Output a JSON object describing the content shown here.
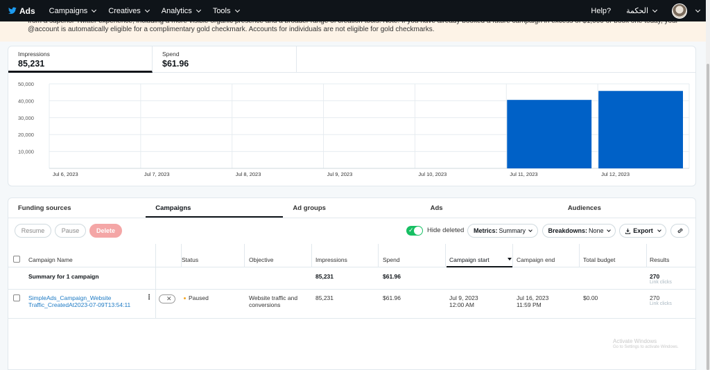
{
  "nav": {
    "brand": "Ads",
    "menu": [
      "Campaigns",
      "Creatives",
      "Analytics",
      "Tools"
    ],
    "help": "Help?",
    "account": "الحكمة"
  },
  "banner": {
    "text": "from a superior Twitter experience, including a more visible organic presence and a broader range of creation tools. Note: If you have already booked a future campaign in excess of $1,000 or book one today, your @account is automatically eligible for a complimentary gold checkmark. Accounts for individuals are not eligible for gold checkmarks."
  },
  "metrics": [
    {
      "label": "Impressions",
      "value": "85,231"
    },
    {
      "label": "Spend",
      "value": "$61.96"
    }
  ],
  "chart_data": {
    "type": "bar",
    "categories": [
      "Jul 6, 2023",
      "Jul 7, 2023",
      "Jul 8, 2023",
      "Jul 9, 2023",
      "Jul 10, 2023",
      "Jul 11, 2023",
      "Jul 12, 2023"
    ],
    "values": [
      0,
      0,
      0,
      0,
      0,
      40500,
      45800
    ],
    "ylim": [
      0,
      50000
    ],
    "yticks": [
      "50,000",
      "40,000",
      "30,000",
      "20,000",
      "10,000"
    ],
    "grid": true,
    "color": "#0061c7"
  },
  "tabs": [
    "Funding sources",
    "Campaigns",
    "Ad groups",
    "Ads",
    "Audiences"
  ],
  "toolbar": {
    "resume": "Resume",
    "pause": "Pause",
    "delete": "Delete",
    "hide_deleted": "Hide deleted",
    "metrics_label": "Metrics:",
    "metrics_value": "Summary",
    "breakdowns_label": "Breakdowns:",
    "breakdowns_value": "None",
    "export": "Export"
  },
  "table": {
    "headers": [
      "Campaign Name",
      "Status",
      "Objective",
      "Impressions",
      "Spend",
      "Campaign start",
      "Campaign end",
      "Total budget",
      "Results"
    ],
    "summary": {
      "name": "Summary for 1 campaign",
      "impressions": "85,231",
      "spend": "$61.96",
      "results": "270",
      "results_sub": "Link clicks"
    },
    "rows": [
      {
        "name": "SimpleAds_Campaign_Website Traffic_CreatedAt2023-07-09T13:54:11",
        "status": "Paused",
        "objective": "Website traffic and conversions",
        "impressions": "85,231",
        "spend": "$61.96",
        "start_date": "Jul 9, 2023",
        "start_time": "12:00 AM",
        "end_date": "Jul 16, 2023",
        "end_time": "11:59 PM",
        "budget": "$0.00",
        "results": "270",
        "results_sub": "Link clicks"
      }
    ]
  },
  "watermark": {
    "title": "Activate Windows",
    "subtitle": "Go to Settings to activate Windows."
  }
}
